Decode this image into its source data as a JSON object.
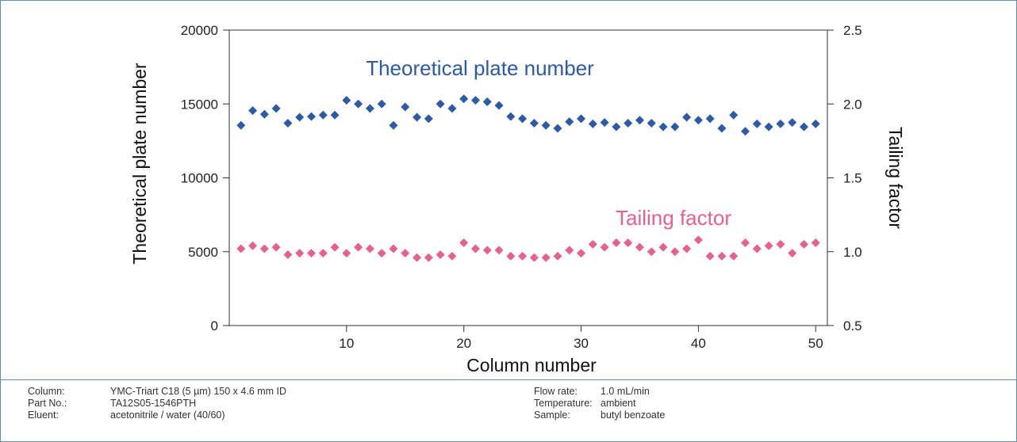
{
  "chart_data": {
    "type": "scatter",
    "xlabel": "Column number",
    "ylabel": "Theoretical plate number",
    "y2label": "Tailing factor",
    "xlim": [
      0,
      51
    ],
    "xticks": [
      "10",
      "20",
      "30",
      "40",
      "50"
    ],
    "ylim": [
      0,
      20000
    ],
    "yticks": [
      "0",
      "5000",
      "10000",
      "15000",
      "20000"
    ],
    "y2lim": [
      0.5,
      2.5
    ],
    "y2ticks": [
      "0.5",
      "1.0",
      "1.5",
      "2.0",
      "2.5"
    ],
    "grid": false,
    "x": [
      1,
      2,
      3,
      4,
      5,
      6,
      7,
      8,
      9,
      10,
      11,
      12,
      13,
      14,
      15,
      16,
      17,
      18,
      19,
      20,
      21,
      22,
      23,
      24,
      25,
      26,
      27,
      28,
      29,
      30,
      31,
      32,
      33,
      34,
      35,
      36,
      37,
      38,
      39,
      40,
      41,
      42,
      43,
      44,
      45,
      46,
      47,
      48,
      49,
      50
    ],
    "series": [
      {
        "name": "Theoretical plate number",
        "axis": "left",
        "color": "#2a5aa8",
        "values": [
          13550,
          14550,
          14300,
          14700,
          13700,
          14100,
          14150,
          14250,
          14250,
          15250,
          15000,
          14700,
          15000,
          13550,
          14800,
          14100,
          14000,
          15000,
          14700,
          15350,
          15250,
          15150,
          14900,
          14150,
          14000,
          13700,
          13550,
          13350,
          13800,
          14000,
          13650,
          13750,
          13450,
          13700,
          13900,
          13700,
          13450,
          13450,
          14100,
          13900,
          14000,
          13350,
          14250,
          13150,
          13650,
          13450,
          13650,
          13750,
          13450,
          13650
        ]
      },
      {
        "name": "Tailing factor",
        "axis": "right",
        "color": "#e8608c",
        "values": [
          1.02,
          1.04,
          1.02,
          1.03,
          0.98,
          0.99,
          0.99,
          0.99,
          1.03,
          0.99,
          1.03,
          1.02,
          0.99,
          1.02,
          0.99,
          0.96,
          0.96,
          0.98,
          0.97,
          1.06,
          1.02,
          1.01,
          1.01,
          0.97,
          0.97,
          0.96,
          0.96,
          0.97,
          1.01,
          0.99,
          1.05,
          1.03,
          1.06,
          1.06,
          1.03,
          1.0,
          1.03,
          1.0,
          1.02,
          1.08,
          0.97,
          0.97,
          0.97,
          1.06,
          1.02,
          1.04,
          1.05,
          0.99,
          1.05,
          1.06
        ]
      }
    ],
    "annotations": [
      "Theoretical plate number",
      "Tailing factor"
    ]
  },
  "conditions": {
    "left": [
      {
        "label": "Column:",
        "value": "YMC-Triart C18 (5 µm) 150 x 4.6 mm ID"
      },
      {
        "label": "Part No.:",
        "value": "TA12S05-1546PTH"
      },
      {
        "label": "Eluent:",
        "value": "acetonitrile / water (40/60)"
      }
    ],
    "right": [
      {
        "label": "Flow rate:",
        "value": "1.0 mL/min"
      },
      {
        "label": "Temperature:",
        "value": "ambient"
      },
      {
        "label": "Sample:",
        "value": "butyl benzoate"
      }
    ]
  }
}
